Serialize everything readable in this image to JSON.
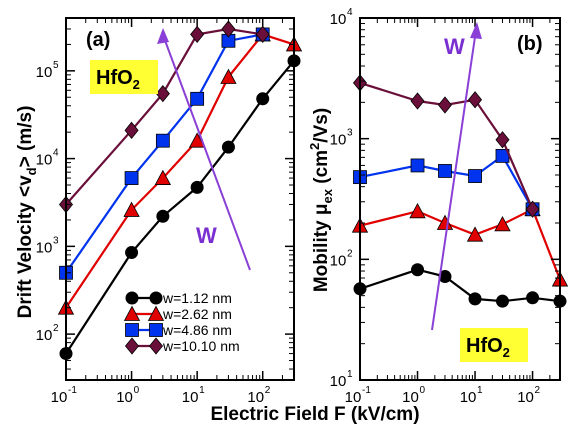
{
  "xlabel": "Electric Field F (kV/cm)",
  "colors": {
    "w1": "#000000",
    "w2": "#e00000",
    "w3": "#0033ee",
    "w4": "#6a0f3a",
    "arrow": "#8a3fd6",
    "highlight": "#ffff33"
  },
  "legend_labels": [
    "w=1.12 nm",
    "w=2.62 nm",
    "w=4.86 nm",
    "w=10.10 nm"
  ],
  "chart_data": [
    {
      "type": "line",
      "panel": "(a)",
      "ylabel": "Drift Velocity <vₙ> (m/s)",
      "ylabel_parts": {
        "main": "Drift Velocity <v",
        "sub": "d",
        "tail": "> (m/s)"
      },
      "xscale": "log",
      "yscale": "log",
      "xlim": [
        0.1,
        300
      ],
      "ylim": [
        30,
        400000
      ],
      "x_ticks": [
        "10",
        "10",
        "10",
        "10"
      ],
      "x_tick_exps": [
        "-1",
        "0",
        "1",
        "2"
      ],
      "y_ticks": [
        "10",
        "10",
        "10",
        "10"
      ],
      "y_tick_exps": [
        "2",
        "3",
        "4",
        "5"
      ],
      "annotations": {
        "material_main": "HfO",
        "material_sub": "2",
        "direction": "W"
      },
      "legend": "bottom-right",
      "series": [
        {
          "name": "w=1.12 nm",
          "marker": "circle",
          "x": [
            0.1,
            1,
            3,
            10,
            30,
            100,
            300
          ],
          "y": [
            60,
            850,
            2200,
            4700,
            13500,
            48000,
            130000
          ]
        },
        {
          "name": "w=2.62 nm",
          "marker": "triangle",
          "x": [
            0.1,
            1,
            3,
            10,
            30,
            100,
            300
          ],
          "y": [
            200,
            2600,
            6000,
            16000,
            85000,
            260000,
            200000
          ]
        },
        {
          "name": "w=4.86 nm",
          "marker": "square",
          "x": [
            0.1,
            1,
            3,
            10,
            30,
            100
          ],
          "y": [
            500,
            6000,
            16000,
            48000,
            220000,
            260000
          ]
        },
        {
          "name": "w=10.10 nm",
          "marker": "diamond",
          "x": [
            0.1,
            1,
            3,
            10,
            30,
            100
          ],
          "y": [
            3000,
            21000,
            55000,
            260000,
            300000,
            260000
          ]
        }
      ]
    },
    {
      "type": "line",
      "panel": "(b)",
      "ylabel_parts": {
        "main": "Mobility μ",
        "sub": "ex",
        "tail": " (cm",
        "sup": "2",
        "tail2": "/Vs)"
      },
      "xscale": "log",
      "yscale": "log",
      "xlim": [
        0.1,
        300
      ],
      "ylim": [
        10,
        10000
      ],
      "x_ticks": [
        "10",
        "10",
        "10",
        "10"
      ],
      "x_tick_exps": [
        "-1",
        "0",
        "1",
        "2"
      ],
      "y_ticks": [
        "10",
        "10",
        "10",
        "10"
      ],
      "y_tick_exps": [
        "1",
        "2",
        "3",
        "4"
      ],
      "annotations": {
        "material_main": "HfO",
        "material_sub": "2",
        "direction": "W"
      },
      "series": [
        {
          "name": "w=1.12 nm",
          "marker": "circle",
          "x": [
            0.1,
            1,
            3,
            10,
            30,
            100,
            300
          ],
          "y": [
            57,
            82,
            72,
            47,
            45,
            48,
            45
          ]
        },
        {
          "name": "w=2.62 nm",
          "marker": "triangle",
          "x": [
            0.1,
            1,
            3,
            10,
            30,
            100,
            300
          ],
          "y": [
            190,
            250,
            200,
            160,
            195,
            260,
            68
          ]
        },
        {
          "name": "w=4.86 nm",
          "marker": "square",
          "x": [
            0.1,
            1,
            3,
            10,
            30,
            100
          ],
          "y": [
            480,
            600,
            540,
            490,
            720,
            260
          ]
        },
        {
          "name": "w=10.10 nm",
          "marker": "diamond",
          "x": [
            0.1,
            1,
            3,
            10,
            30,
            100
          ],
          "y": [
            2900,
            2050,
            1900,
            2100,
            980,
            260
          ]
        }
      ]
    }
  ]
}
